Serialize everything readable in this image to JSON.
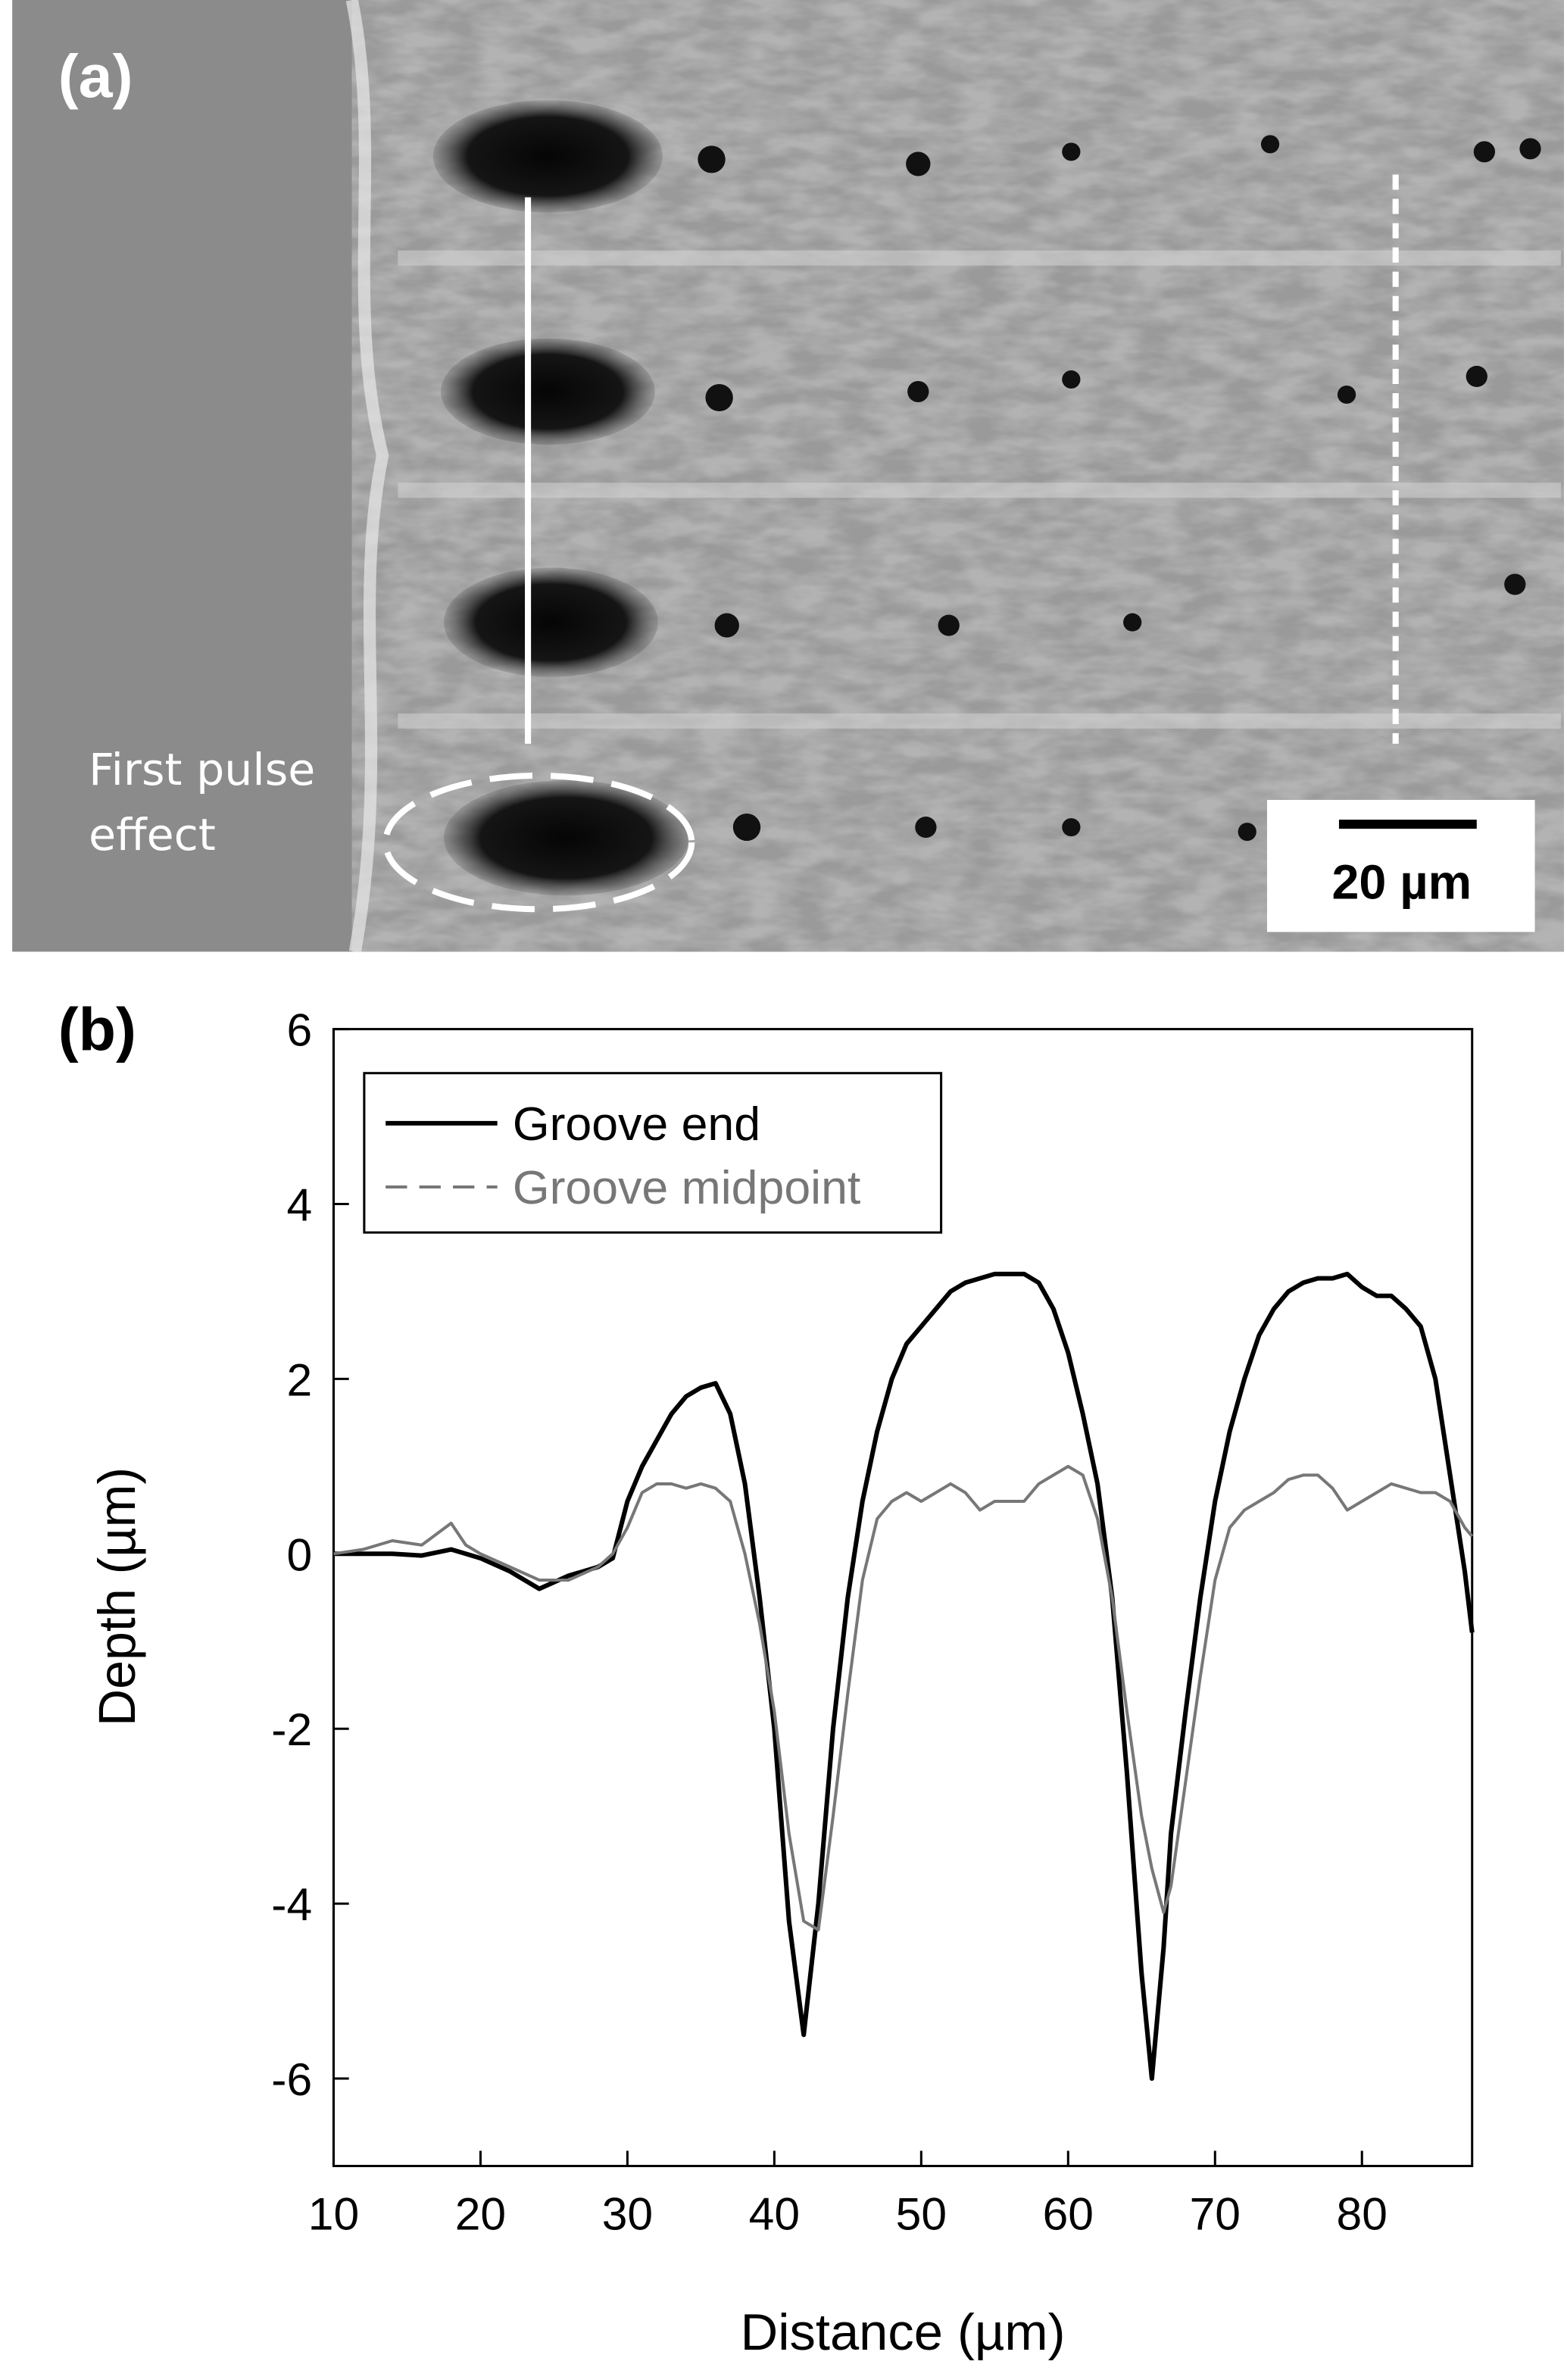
{
  "panel_a": {
    "label": "(a)",
    "annotation": [
      "First pulse",
      "effect"
    ],
    "scale_bar": "20 µm"
  },
  "chart_data": {
    "type": "line",
    "label": "(b)",
    "x_label": "Distance (µm)",
    "y_label": "Depth (µm)",
    "xlim": [
      10,
      87.5
    ],
    "ylim": [
      -7,
      6
    ],
    "xticks": [
      10,
      20,
      30,
      40,
      50,
      60,
      70,
      80
    ],
    "yticks": [
      -6,
      -4,
      -2,
      0,
      2,
      4,
      6
    ],
    "legend": "top-left",
    "x": [
      10,
      12,
      14,
      16,
      18,
      19,
      20,
      22,
      24,
      26,
      28,
      29,
      30,
      31,
      32,
      33,
      34,
      35,
      36,
      37,
      38,
      39,
      40,
      41,
      42,
      43,
      44,
      45,
      46,
      47,
      48,
      49,
      50,
      51,
      52,
      53,
      54,
      55,
      56,
      57,
      58,
      59,
      60,
      61,
      62,
      63,
      64,
      65,
      65.7,
      66.5,
      67,
      68,
      69,
      70,
      71,
      72,
      73,
      74,
      75,
      76,
      77,
      78,
      79,
      80,
      81,
      82,
      83,
      84,
      85,
      86,
      87,
      87.5
    ],
    "series": [
      {
        "name": "Groove end",
        "color": "#000000",
        "line_style": "solid",
        "values": [
          0,
          0,
          0,
          -0.02,
          0.05,
          0,
          -0.05,
          -0.2,
          -0.4,
          -0.25,
          -0.15,
          -0.05,
          0.6,
          1.0,
          1.3,
          1.6,
          1.8,
          1.9,
          1.95,
          1.6,
          0.8,
          -0.5,
          -2,
          -4.2,
          -5.5,
          -4,
          -2,
          -0.5,
          0.6,
          1.4,
          2.0,
          2.4,
          2.6,
          2.8,
          3.0,
          3.1,
          3.15,
          3.2,
          3.2,
          3.2,
          3.1,
          2.8,
          2.3,
          1.6,
          0.8,
          -0.5,
          -2.5,
          -4.8,
          -6,
          -4.5,
          -3.2,
          -1.8,
          -0.5,
          0.6,
          1.4,
          2.0,
          2.5,
          2.8,
          3.0,
          3.1,
          3.15,
          3.15,
          3.2,
          3.05,
          2.95,
          2.95,
          2.8,
          2.6,
          2.0,
          0.9,
          -0.2,
          -0.9
        ]
      },
      {
        "name": "Groove midpoint",
        "color": "#777777",
        "line_style": "dashed",
        "values": [
          0,
          0.05,
          0.15,
          0.1,
          0.35,
          0.1,
          0,
          -0.15,
          -0.3,
          -0.3,
          -0.15,
          0,
          0.3,
          0.7,
          0.8,
          0.8,
          0.75,
          0.8,
          0.75,
          0.6,
          0,
          -0.8,
          -1.8,
          -3.2,
          -4.2,
          -4.3,
          -3,
          -1.6,
          -0.3,
          0.4,
          0.6,
          0.7,
          0.6,
          0.7,
          0.8,
          0.7,
          0.5,
          0.6,
          0.6,
          0.6,
          0.8,
          0.9,
          1.0,
          0.9,
          0.4,
          -0.5,
          -1.8,
          -3.0,
          -3.6,
          -4.1,
          -3.8,
          -2.6,
          -1.4,
          -0.3,
          0.3,
          0.5,
          0.6,
          0.7,
          0.85,
          0.9,
          0.9,
          0.75,
          0.5,
          0.6,
          0.7,
          0.8,
          0.75,
          0.7,
          0.7,
          0.6,
          0.3,
          0.2
        ]
      }
    ]
  }
}
